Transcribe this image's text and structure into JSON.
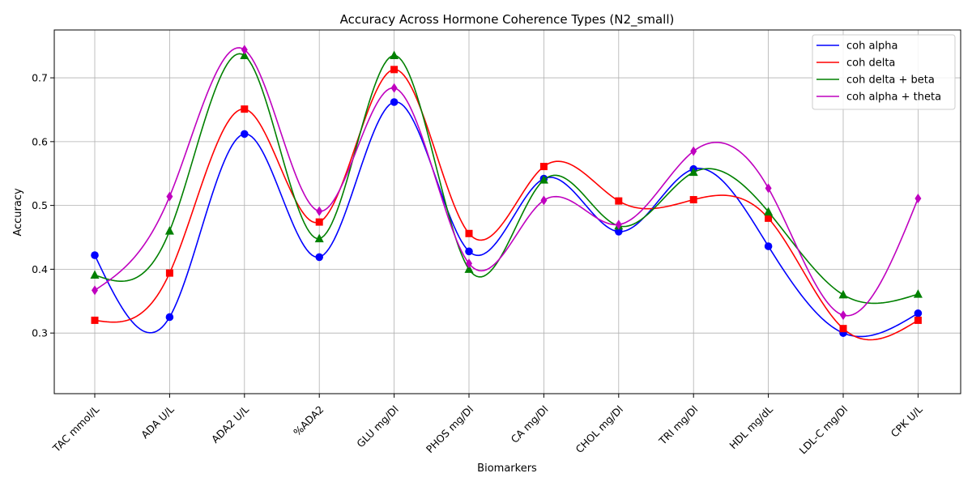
{
  "chart_data": {
    "type": "line",
    "title": "Accuracy Across Hormone Coherence Types (N2_small)",
    "xlabel": "Biomarkers",
    "ylabel": "Accuracy",
    "ylim": [
      0.205,
      0.775
    ],
    "yticks": [
      0.3,
      0.4,
      0.5,
      0.6,
      0.7
    ],
    "yticklabels": [
      "0.3",
      "0.4",
      "0.5",
      "0.6",
      "0.7"
    ],
    "grid": true,
    "legend_position": "top-right",
    "categories": [
      "TAC mmol/L",
      "ADA U/L",
      "ADA2 U/L",
      "%ADA2",
      "GLU mg/Dl",
      "PHOS mg/Dl",
      "CA mg/Dl",
      "CHOL mg/Dl",
      "TRI mg/Dl",
      "HDL mg/dL",
      "LDL-C mg/Dl",
      "CPK U/L"
    ],
    "series": [
      {
        "name": "coh alpha",
        "color": "#0000ff",
        "marker": "circle",
        "values": [
          0.422,
          0.325,
          0.612,
          0.419,
          0.662,
          0.428,
          0.542,
          0.459,
          0.557,
          0.436,
          0.3,
          0.331
        ]
      },
      {
        "name": "coh delta",
        "color": "#ff0000",
        "marker": "square",
        "values": [
          0.32,
          0.394,
          0.651,
          0.474,
          0.713,
          0.456,
          0.561,
          0.507,
          0.509,
          0.48,
          0.307,
          0.32
        ]
      },
      {
        "name": "coh delta + beta",
        "color": "#008000",
        "marker": "triangle",
        "values": [
          0.391,
          0.46,
          0.735,
          0.448,
          0.735,
          0.4,
          0.54,
          0.468,
          0.552,
          0.49,
          0.36,
          0.361
        ]
      },
      {
        "name": "coh alpha + theta",
        "color": "#bf00bf",
        "marker": "diamond",
        "values": [
          0.367,
          0.514,
          0.744,
          0.491,
          0.684,
          0.409,
          0.508,
          0.47,
          0.585,
          0.527,
          0.328,
          0.511
        ]
      }
    ]
  }
}
